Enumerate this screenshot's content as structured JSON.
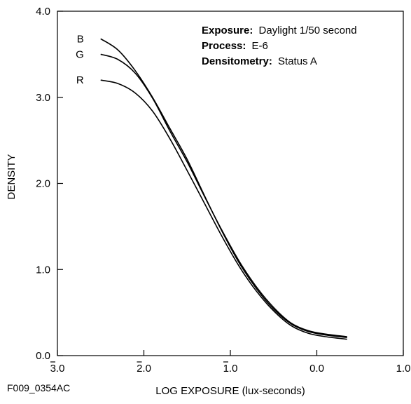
{
  "figure_code": "F009_0354AC",
  "info_box": {
    "exposure_label": "Exposure:",
    "exposure_value": "Daylight 1/50 second",
    "process_label": "Process:",
    "process_value": "E-6",
    "densitometry_label": "Densitometry:",
    "densitometry_value": "Status A"
  },
  "chart_data": {
    "type": "line",
    "title": "",
    "xlabel": "LOG EXPOSURE (lux-seconds)",
    "ylabel": "DENSITY",
    "xlim": [
      -3.0,
      1.0
    ],
    "ylim": [
      0.0,
      4.0
    ],
    "x_ticks": [
      {
        "value": -3.0,
        "int": "3",
        "dec": ".0",
        "bar": true
      },
      {
        "value": -2.0,
        "int": "2",
        "dec": ".0",
        "bar": true
      },
      {
        "value": -1.0,
        "int": "1",
        "dec": ".0",
        "bar": true
      },
      {
        "value": 0.0,
        "int": "0",
        "dec": ".0",
        "bar": false
      },
      {
        "value": 1.0,
        "int": "1",
        "dec": ".0",
        "bar": false
      }
    ],
    "y_ticks": [
      {
        "value": 0.0,
        "label": "0.0"
      },
      {
        "value": 1.0,
        "label": "1.0"
      },
      {
        "value": 2.0,
        "label": "2.0"
      },
      {
        "value": 3.0,
        "label": "3.0"
      },
      {
        "value": 4.0,
        "label": "4.0"
      }
    ],
    "grid": false,
    "series": [
      {
        "name": "B",
        "x": [
          -2.5,
          -2.3,
          -2.1,
          -1.9,
          -1.7,
          -1.5,
          -1.3,
          -1.1,
          -0.9,
          -0.7,
          -0.5,
          -0.3,
          -0.1,
          0.1,
          0.35
        ],
        "y": [
          3.68,
          3.55,
          3.31,
          3.0,
          2.64,
          2.28,
          1.86,
          1.45,
          1.08,
          0.78,
          0.54,
          0.37,
          0.28,
          0.24,
          0.21
        ]
      },
      {
        "name": "G",
        "x": [
          -2.5,
          -2.3,
          -2.1,
          -1.9,
          -1.7,
          -1.5,
          -1.3,
          -1.1,
          -0.9,
          -0.7,
          -0.5,
          -0.3,
          -0.1,
          0.1,
          0.35
        ],
        "y": [
          3.5,
          3.44,
          3.28,
          2.99,
          2.61,
          2.25,
          1.85,
          1.46,
          1.1,
          0.8,
          0.56,
          0.38,
          0.29,
          0.25,
          0.22
        ]
      },
      {
        "name": "R",
        "x": [
          -2.5,
          -2.3,
          -2.1,
          -1.9,
          -1.7,
          -1.5,
          -1.3,
          -1.1,
          -0.9,
          -0.7,
          -0.5,
          -0.3,
          -0.1,
          0.1,
          0.35
        ],
        "y": [
          3.2,
          3.16,
          3.05,
          2.84,
          2.52,
          2.15,
          1.77,
          1.39,
          1.04,
          0.75,
          0.52,
          0.35,
          0.26,
          0.22,
          0.19
        ]
      }
    ]
  }
}
